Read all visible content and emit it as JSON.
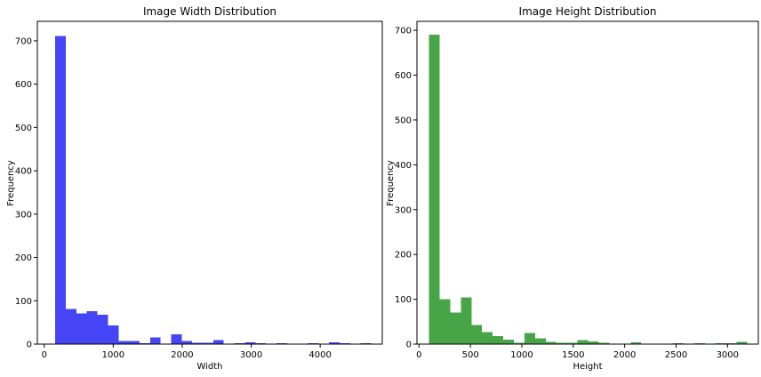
{
  "chart_data": [
    {
      "type": "bar",
      "title": "Image Width Distribution",
      "xlabel": "Width",
      "ylabel": "Frequency",
      "color": "#4545f6",
      "xlim": [
        -100,
        4900
      ],
      "ylim": [
        0,
        745
      ],
      "xticks": [
        0,
        1000,
        2000,
        3000,
        4000
      ],
      "xtick_labels": [
        "0",
        "1000",
        "2000",
        "3000",
        "4000"
      ],
      "yticks": [
        0,
        100,
        200,
        300,
        400,
        500,
        600,
        700
      ],
      "ytick_labels": [
        "0",
        "100",
        "200",
        "300",
        "400",
        "500",
        "600",
        "700"
      ],
      "bin_range": [
        160,
        4740
      ],
      "values": [
        711,
        81,
        71,
        76,
        68,
        43,
        7,
        7,
        2,
        15,
        1,
        23,
        7,
        3,
        3,
        9,
        1,
        2,
        4,
        2,
        0,
        2,
        0,
        0,
        2,
        0,
        4,
        2,
        0,
        2
      ]
    },
    {
      "type": "bar",
      "title": "Image Height Distribution",
      "xlabel": "Height",
      "ylabel": "Frequency",
      "color": "#47a447",
      "xlim": [
        -20,
        3300
      ],
      "ylim": [
        0,
        720
      ],
      "xticks": [
        0,
        500,
        1000,
        1500,
        2000,
        2500,
        3000
      ],
      "xtick_labels": [
        "0",
        "500",
        "1000",
        "1500",
        "2000",
        "2500",
        "3000"
      ],
      "yticks": [
        0,
        100,
        200,
        300,
        400,
        500,
        600,
        700
      ],
      "ytick_labels": [
        "0",
        "100",
        "200",
        "300",
        "400",
        "500",
        "600",
        "700"
      ],
      "bin_range": [
        97,
        3192
      ],
      "values": [
        690,
        100,
        70,
        104,
        43,
        27,
        18,
        10,
        3,
        25,
        13,
        5,
        3,
        3,
        9,
        6,
        3,
        1,
        0,
        4,
        0,
        0,
        0,
        2,
        0,
        2,
        0,
        2,
        2,
        5
      ]
    }
  ]
}
